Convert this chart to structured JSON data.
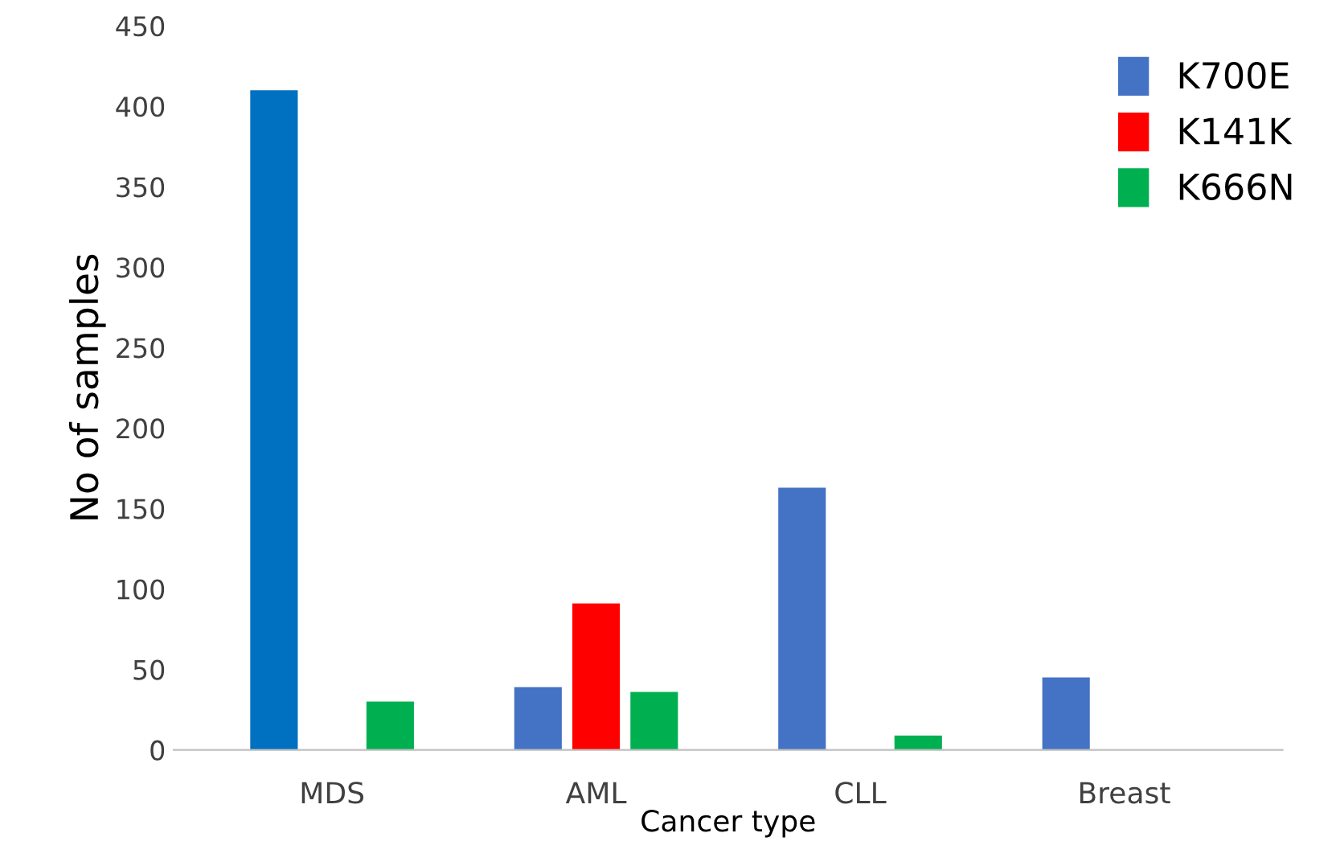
{
  "chart_data": {
    "type": "bar",
    "xlabel": "Cancer type",
    "ylabel": "No of samples",
    "categories": [
      "MDS",
      "AML",
      "CLL",
      "Breast"
    ],
    "series": [
      {
        "name": "K700E",
        "color": "#4472c4",
        "colors": [
          "#0070c0",
          "#4472c4",
          "#4472c4",
          "#4472c4"
        ],
        "values": [
          410,
          39,
          163,
          45
        ]
      },
      {
        "name": "K141K",
        "color": "#ff0000",
        "values": [
          null,
          91,
          null,
          null
        ]
      },
      {
        "name": "K666N",
        "color": "#00b050",
        "values": [
          30,
          36,
          9,
          null
        ]
      }
    ],
    "ylim": [
      0,
      450
    ],
    "yticks": [
      0,
      50,
      100,
      150,
      200,
      250,
      300,
      350,
      400,
      450
    ],
    "grid": false,
    "legend": "top right"
  }
}
